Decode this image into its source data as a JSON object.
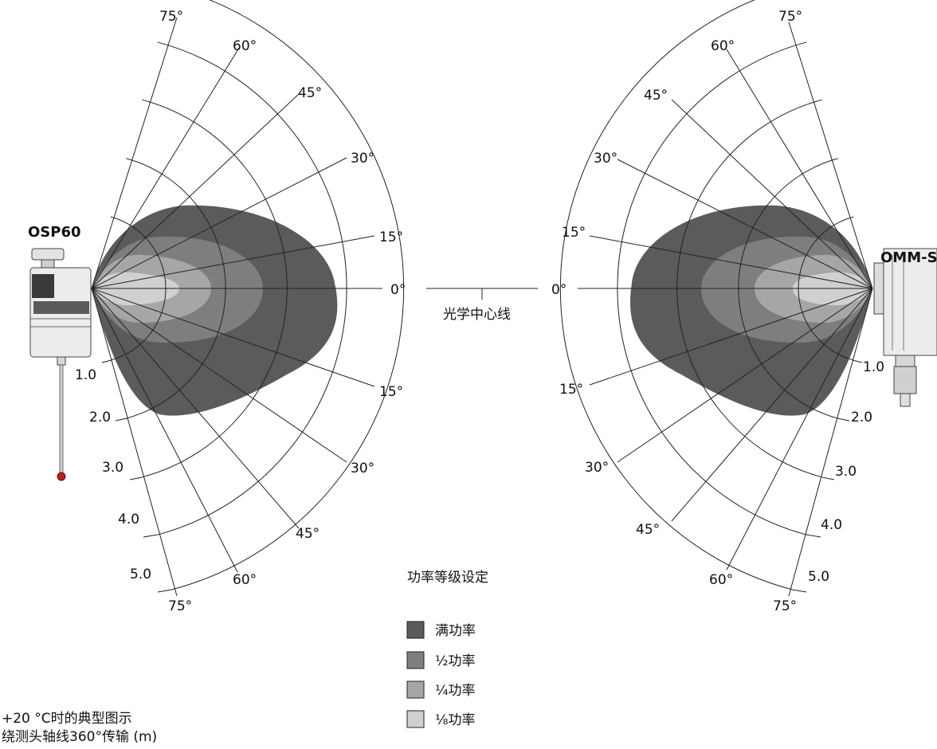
{
  "device_left": "OSP60",
  "device_right": "OMM-S",
  "centerline_label": "光学中心线",
  "zero_left": "0°",
  "zero_right": "0°",
  "left_angles": {
    "a75u": "75°",
    "a60u": "60°",
    "a45u": "45°",
    "a30u": "30°",
    "a15u": "15°",
    "a15d": "15°",
    "a30d": "30°",
    "a45d": "45°",
    "a60d": "60°",
    "a75d": "75°"
  },
  "right_angles": {
    "a75u": "75°",
    "a60u": "60°",
    "a45u": "45°",
    "a30u": "30°",
    "a15u": "15°",
    "a15d": "15°",
    "a30d": "30°",
    "a45d": "45°",
    "a60d": "60°",
    "a75d": "75°"
  },
  "left_distances": {
    "d1": "1.0",
    "d2": "2.0",
    "d3": "3.0",
    "d4": "4.0",
    "d5": "5.0"
  },
  "right_distances": {
    "d1": "1.0",
    "d2": "2.0",
    "d3": "3.0",
    "d4": "4.0",
    "d5": "5.0"
  },
  "legend": {
    "title": "功率等级设定",
    "items": [
      {
        "label": "满功率",
        "color": "#5b5b5b"
      },
      {
        "label": "½功率",
        "color": "#7e7e7e"
      },
      {
        "label": "¼功率",
        "color": "#a6a6a6"
      },
      {
        "label": "⅛功率",
        "color": "#d0d0d0"
      }
    ]
  },
  "footnote": {
    "line1": "+20 °C时的典型图示",
    "line2": "绕测头轴线360°传输 (m)"
  }
}
